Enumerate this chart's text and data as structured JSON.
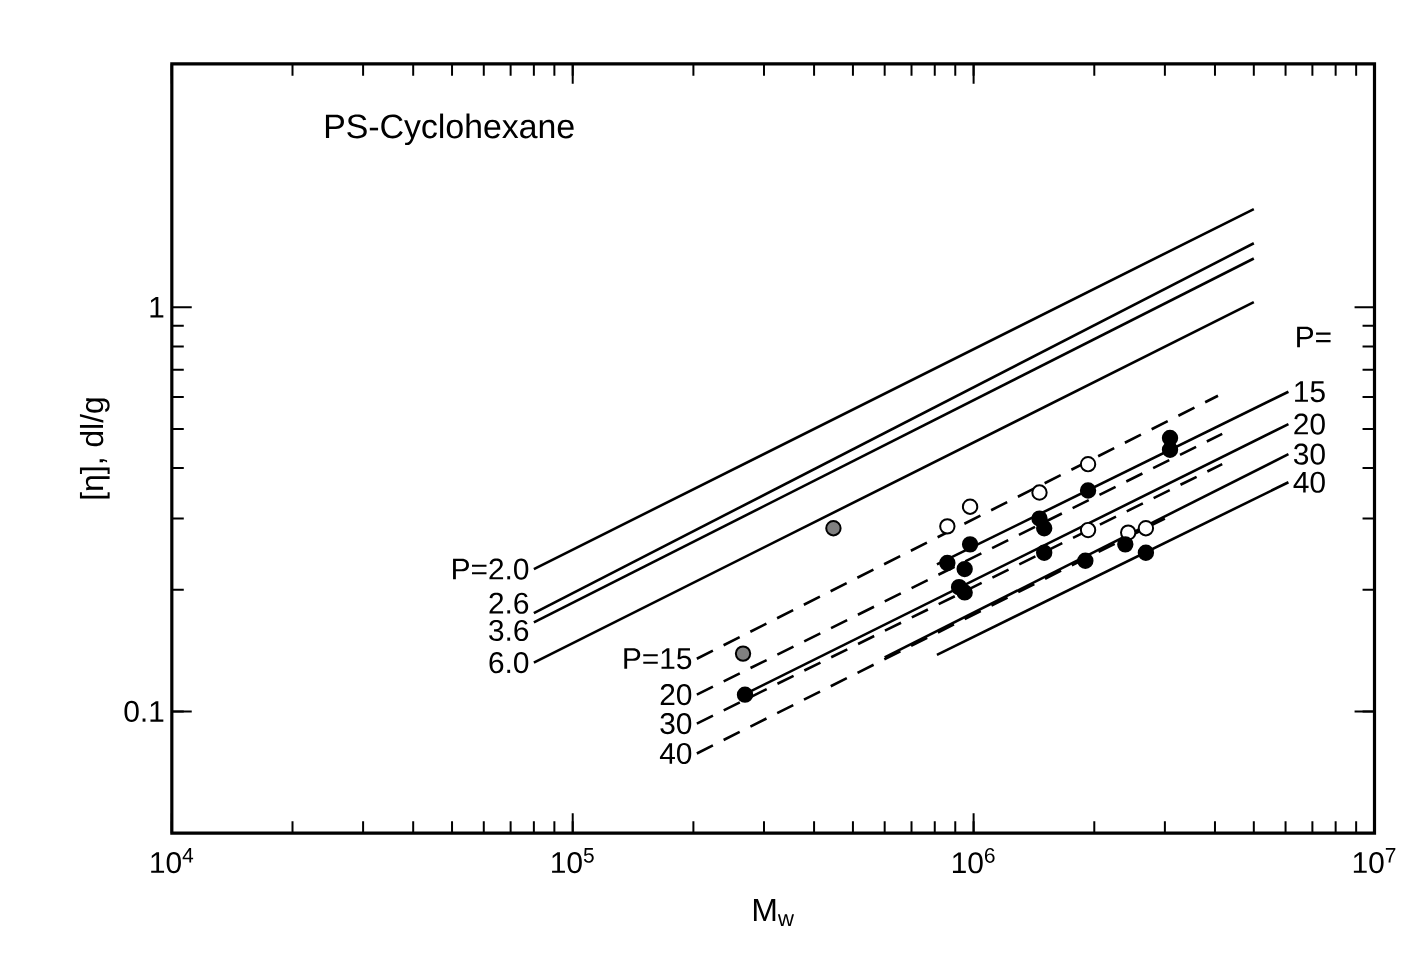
{
  "chart_data": {
    "type": "line",
    "title": "PS-Cyclohexane",
    "xlabel": "M$_{w}$",
    "ylabel": "[η], dl/g",
    "log": "xy",
    "marker": "none",
    "xlim": [
      10000,
      10000000
    ],
    "ylim": [
      0.05,
      4
    ],
    "xticks": [
      {
        "value": 10000,
        "label": "10$^{4}$"
      },
      {
        "value": 100000,
        "label": "10$^{5}$"
      },
      {
        "value": 1000000,
        "label": "10$^{6}$"
      },
      {
        "value": 10000000,
        "label": "10$^{7}$"
      }
    ],
    "yticks": [
      0.1,
      1
    ],
    "series": [
      {
        "line_style": "solid",
        "color": "#000000",
        "x": [
          80000,
          5000000
        ],
        "values": [
          0.225,
          1.75
        ]
      },
      {
        "line_style": "solid",
        "color": "#000000",
        "x": [
          80000,
          5000000
        ],
        "values": [
          0.175,
          1.44
        ]
      },
      {
        "line_style": "solid",
        "color": "#000000",
        "x": [
          80000,
          5000000
        ],
        "values": [
          0.166,
          1.32
        ]
      },
      {
        "line_style": "solid",
        "color": "#000000",
        "x": [
          80000,
          5000000
        ],
        "values": [
          0.132,
          1.03
        ]
      },
      {
        "line_style": "dashed",
        "color": "#000000",
        "x": [
          204000,
          4070000
        ],
        "values": [
          0.135,
          0.604
        ]
      },
      {
        "line_style": "dashed",
        "color": "#000000",
        "x": [
          204000,
          4170000
        ],
        "values": [
          0.11,
          0.486
        ]
      },
      {
        "line_style": "dashed",
        "color": "#000000",
        "x": [
          204000,
          4170000
        ],
        "values": [
          0.0933,
          0.409
        ]
      },
      {
        "line_style": "dashed",
        "color": "#000000",
        "x": [
          204000,
          3000000
        ],
        "values": [
          0.0787,
          0.3
        ]
      },
      {
        "line_style": "solid",
        "color": "#000000",
        "x": [
          810000,
          6100000
        ],
        "values": [
          0.231,
          0.618
        ]
      },
      {
        "line_style": "solid",
        "color": "#000000",
        "x": [
          272000,
          6100000
        ],
        "values": [
          0.111,
          0.514
        ]
      },
      {
        "line_style": "solid",
        "color": "#000000",
        "x": [
          600000,
          6100000
        ],
        "values": [
          0.136,
          0.433
        ]
      },
      {
        "line_style": "solid",
        "color": "#000000",
        "x": [
          810000,
          6100000
        ],
        "values": [
          0.138,
          0.369
        ]
      },
      {
        "type": "scatter",
        "marker": "circle",
        "color": "#ffffff",
        "x": [
          860000,
          980000,
          1460000,
          1930000,
          1930000,
          2430000,
          2690000
        ],
        "values": [
          0.287,
          0.321,
          0.348,
          0.409,
          0.281,
          0.277,
          0.284
        ]
      },
      {
        "type": "scatter",
        "marker": "circle",
        "color": "#000000",
        "x": [
          980000,
          860000,
          950000,
          1460000,
          1500000,
          1500000,
          1930000,
          1900000,
          3090000,
          3090000,
          2390000,
          2690000,
          950000,
          920000,
          269000
        ],
        "values": [
          0.259,
          0.233,
          0.225,
          0.3,
          0.284,
          0.247,
          0.352,
          0.236,
          0.475,
          0.444,
          0.259,
          0.247,
          0.197,
          0.203,
          0.11
        ]
      },
      {
        "type": "scatter",
        "marker": "circle",
        "color": "#808080",
        "x": [
          447000,
          266000
        ],
        "values": [
          0.284,
          0.139
        ]
      }
    ],
    "annotations": [
      {
        "text": "P=2.0",
        "x": 80000,
        "y": 0.225
      },
      {
        "text": "2.6",
        "x": 80000,
        "y": 0.175
      },
      {
        "text": "3.6",
        "x": 80000,
        "y": 0.166
      },
      {
        "text": "6.0",
        "x": 80000,
        "y": 0.132
      },
      {
        "text": "P=15",
        "x": 204000,
        "y": 0.135
      },
      {
        "text": "20",
        "x": 204000,
        "y": 0.11
      },
      {
        "text": "30",
        "x": 204000,
        "y": 0.0933
      },
      {
        "text": "40",
        "x": 204000,
        "y": 0.0787
      },
      "P=",
      {
        "text": "15",
        "x": 6100000,
        "y": 0.618
      },
      {
        "text": "20",
        "x": 6100000,
        "y": 0.514
      },
      {
        "text": "30",
        "x": 6100000,
        "y": 0.433
      },
      {
        "text": "40",
        "x": 6100000,
        "y": 0.369
      }
    ]
  }
}
